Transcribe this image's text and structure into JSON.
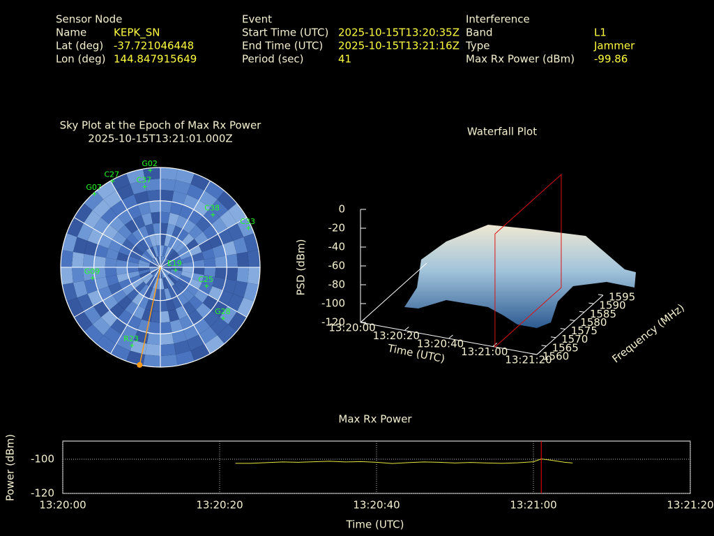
{
  "header": {
    "sensor_node": {
      "title": "Sensor Node",
      "rows": [
        [
          "Name",
          "KEPK_SN"
        ],
        [
          "Lat (deg)",
          -37.721046448
        ],
        [
          "Lon (deg)",
          144.847915649
        ]
      ]
    },
    "event": {
      "title": "Event",
      "rows": [
        [
          "Start Time (UTC)",
          "2025-10-15T13:20:35Z"
        ],
        [
          "End Time (UTC)",
          "2025-10-15T13:21:16Z"
        ],
        [
          "Period (sec)",
          41
        ]
      ]
    },
    "interference": {
      "title": "Interference",
      "rows": [
        [
          "Band",
          "L1"
        ],
        [
          "Type",
          "Jammer"
        ],
        [
          "Max Rx Power (dBm)",
          -99.86
        ]
      ]
    }
  },
  "chart_data": [
    {
      "type": "skyplot",
      "title": "Sky Plot at the Epoch of Max Rx Power",
      "subtitle": "2025-10-15T13:21:01.000Z",
      "satellites": [
        {
          "name": "G02",
          "az": 354,
          "el": 2
        },
        {
          "name": "C27",
          "az": 331,
          "el": 1
        },
        {
          "name": "G07",
          "az": 318,
          "el": 1
        },
        {
          "name": "C37",
          "az": 349,
          "el": 16
        },
        {
          "name": "C33",
          "az": 66,
          "el": 3
        },
        {
          "name": "C38",
          "az": 45,
          "el": 23
        },
        {
          "name": "G28",
          "az": 129,
          "el": 17
        },
        {
          "name": "C25",
          "az": 112,
          "el": 45
        },
        {
          "name": "E19",
          "az": 100,
          "el": 76
        },
        {
          "name": "G09",
          "az": 261,
          "el": 28
        },
        {
          "name": "R23",
          "az": 200,
          "el": 15
        }
      ],
      "interference_azimuth": 192,
      "interference_color": "#ff9a1a",
      "point_color": "#22ff22"
    },
    {
      "type": "surface3d",
      "title": "Waterfall Plot",
      "xlabel": "Time (UTC)",
      "ylabel": "Frequency (MHz)",
      "zlabel": "PSD (dBm)",
      "xlim": [
        "13:20:00",
        "13:21:20"
      ],
      "xticks": [
        "13:20:00",
        "13:20:20",
        "13:20:40",
        "13:21:00",
        "13:21:20"
      ],
      "ylim": [
        1560,
        1595
      ],
      "yticks": [
        1560,
        1565,
        1570,
        1575,
        1580,
        1585,
        1590,
        1595
      ],
      "zlim": [
        -120,
        0
      ],
      "zticks": [
        -120,
        -100,
        -80,
        -60,
        -40,
        -20,
        0
      ],
      "marker_x": "13:21:01",
      "marker_color": "#dd1111"
    },
    {
      "type": "line",
      "title": "Max Rx Power",
      "xlabel": "Time (UTC)",
      "ylabel": "Power (dBm)",
      "x": [
        "13:20:22",
        "13:20:24",
        "13:20:26",
        "13:20:28",
        "13:20:30",
        "13:20:32",
        "13:20:34",
        "13:20:36",
        "13:20:38",
        "13:20:40",
        "13:20:42",
        "13:20:44",
        "13:20:46",
        "13:20:48",
        "13:20:50",
        "13:20:52",
        "13:20:54",
        "13:20:56",
        "13:20:58",
        "13:21:00",
        "13:21:01",
        "13:21:02",
        "13:21:04",
        "13:21:05"
      ],
      "values": [
        -102.4,
        -102.4,
        -102,
        -101.6,
        -101.8,
        -101.5,
        -101.2,
        -101.6,
        -101.4,
        -101.8,
        -102.5,
        -102,
        -101.6,
        -101.8,
        -102.2,
        -101.9,
        -102.2,
        -102.4,
        -102.1,
        -101.5,
        -99.86,
        -100.4,
        -101.8,
        -102.2
      ],
      "color": "#e6e63a",
      "xlim": [
        "13:20:00",
        "13:21:20"
      ],
      "xticks": [
        "13:20:00",
        "13:20:20",
        "13:20:40",
        "13:21:00",
        "13:21:20"
      ],
      "ylim": [
        -120,
        -89.4
      ],
      "yticks": [
        -120,
        -100
      ],
      "grid": true,
      "marker_x": "13:21:01",
      "marker_color": "#ff0000"
    }
  ]
}
